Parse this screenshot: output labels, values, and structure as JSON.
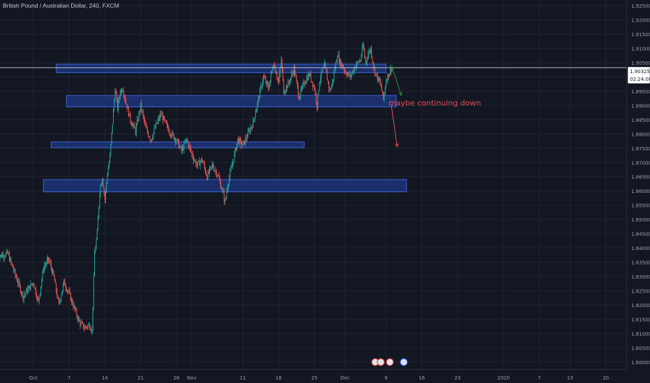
{
  "title": "British Pound / Australian Dollar, 240, FXCM",
  "annotation": "maybe continuing down",
  "price_badge": {
    "price": "1.90325",
    "countdown": "02:24:08"
  },
  "colors": {
    "background": "#131722",
    "grid": "#1f2433",
    "up": "#26a69a",
    "down": "#ef5350",
    "zone_fill": "#1e3f9a",
    "zone_stroke": "#3f63d6",
    "annotation": "#e54b55",
    "arrow_green": "#2e8b3a",
    "axis_text": "#9aa0ab"
  },
  "chart_data": {
    "type": "candlestick",
    "title": "British Pound / Australian Dollar, 240, FXCM",
    "y_ticks": [
      "1.92500",
      "1.92000",
      "1.91500",
      "1.91000",
      "1.90500",
      "1.90000",
      "1.89500",
      "1.89000",
      "1.88500",
      "1.88000",
      "1.87500",
      "1.87000",
      "1.86500",
      "1.86000",
      "1.85500",
      "1.85000",
      "1.84500",
      "1.84000",
      "1.83500",
      "1.83000",
      "1.82500",
      "1.82000",
      "1.81500",
      "1.81000",
      "1.80500",
      "1.80000"
    ],
    "ylim": [
      1.7975,
      1.927
    ],
    "x_ticks": [
      "Oct",
      "7",
      "14",
      "21",
      "28",
      "Nov",
      "11",
      "18",
      "25",
      "Dec",
      "9",
      "16",
      "23",
      "2020",
      "7",
      "13",
      "20"
    ],
    "x_tick_days": [
      0,
      7,
      14,
      21,
      28,
      31,
      41,
      48,
      55,
      61,
      69,
      76,
      83,
      92,
      99,
      105,
      112
    ],
    "x_range_days": [
      -6.5,
      116
    ],
    "last_price": 1.90325,
    "zones": [
      {
        "from_day": 4.5,
        "to_day": 69,
        "y_top": 1.9045,
        "y_bottom": 1.9015
      },
      {
        "from_day": 6.5,
        "to_day": 71,
        "y_top": 1.8935,
        "y_bottom": 1.8895
      },
      {
        "from_day": 3.5,
        "to_day": 53,
        "y_top": 1.8772,
        "y_bottom": 1.8752
      },
      {
        "from_day": 2,
        "to_day": 73,
        "y_top": 1.864,
        "y_bottom": 1.8597
      }
    ],
    "path_points": [
      [
        -7,
        1.837
      ],
      [
        -5,
        1.838
      ],
      [
        -2,
        1.823
      ],
      [
        0,
        1.828
      ],
      [
        1,
        1.821
      ],
      [
        2,
        1.833
      ],
      [
        3,
        1.836
      ],
      [
        4,
        1.83
      ],
      [
        5,
        1.82
      ],
      [
        6,
        1.828
      ],
      [
        7,
        1.824
      ],
      [
        8,
        1.819
      ],
      [
        9,
        1.814
      ],
      [
        10,
        1.812
      ],
      [
        11,
        1.813
      ],
      [
        11.5,
        1.811
      ],
      [
        12,
        1.838
      ],
      [
        12.5,
        1.845
      ],
      [
        13,
        1.86
      ],
      [
        13.5,
        1.865
      ],
      [
        14,
        1.857
      ],
      [
        14.5,
        1.866
      ],
      [
        15,
        1.872
      ],
      [
        15.5,
        1.884
      ],
      [
        16,
        1.896
      ],
      [
        16.5,
        1.889
      ],
      [
        17,
        1.895
      ],
      [
        17.5,
        1.896
      ],
      [
        18,
        1.892
      ],
      [
        19,
        1.885
      ],
      [
        20,
        1.881
      ],
      [
        21,
        1.89
      ],
      [
        22,
        1.882
      ],
      [
        23,
        1.878
      ],
      [
        24,
        1.883
      ],
      [
        25,
        1.887
      ],
      [
        26,
        1.883
      ],
      [
        27,
        1.88
      ],
      [
        28,
        1.878
      ],
      [
        29,
        1.874
      ],
      [
        30,
        1.878
      ],
      [
        31,
        1.873
      ],
      [
        32,
        1.869
      ],
      [
        33,
        1.871
      ],
      [
        34,
        1.865
      ],
      [
        35,
        1.869
      ],
      [
        36,
        1.866
      ],
      [
        37,
        1.86
      ],
      [
        37.5,
        1.856
      ],
      [
        38,
        1.862
      ],
      [
        39,
        1.87
      ],
      [
        40,
        1.878
      ],
      [
        41,
        1.876
      ],
      [
        42,
        1.88
      ],
      [
        43,
        1.884
      ],
      [
        44,
        1.892
      ],
      [
        45,
        1.9
      ],
      [
        46,
        1.896
      ],
      [
        47,
        1.905
      ],
      [
        48,
        1.898
      ],
      [
        48.5,
        1.906
      ],
      [
        49,
        1.895
      ],
      [
        50,
        1.898
      ],
      [
        51,
        1.903
      ],
      [
        52,
        1.893
      ],
      [
        53,
        1.898
      ],
      [
        54,
        1.901
      ],
      [
        55,
        1.896
      ],
      [
        55.5,
        1.89
      ],
      [
        56,
        1.899
      ],
      [
        57,
        1.904
      ],
      [
        58,
        1.895
      ],
      [
        58.5,
        1.898
      ],
      [
        59,
        1.903
      ],
      [
        59.5,
        1.908
      ],
      [
        60,
        1.905
      ],
      [
        60.5,
        1.904
      ],
      [
        61,
        1.902
      ],
      [
        62,
        1.9
      ],
      [
        63,
        1.904
      ],
      [
        64,
        1.906
      ],
      [
        64.5,
        1.911
      ],
      [
        65,
        1.905
      ],
      [
        65.5,
        1.908
      ],
      [
        66,
        1.91
      ],
      [
        66.5,
        1.904
      ],
      [
        67,
        1.901
      ],
      [
        68,
        1.897
      ],
      [
        68.5,
        1.892
      ],
      [
        69,
        1.899
      ],
      [
        70,
        1.903
      ]
    ],
    "annotations": [
      {
        "text": "maybe continuing down",
        "day": 69.5,
        "price": 1.89
      }
    ],
    "arrows": [
      {
        "color": "green",
        "from": [
          70.2,
          1.9035
        ],
        "to": [
          72,
          1.8935
        ]
      },
      {
        "color": "red",
        "from": [
          70,
          1.8905
        ],
        "to": [
          71.2,
          1.8755
        ]
      }
    ]
  }
}
